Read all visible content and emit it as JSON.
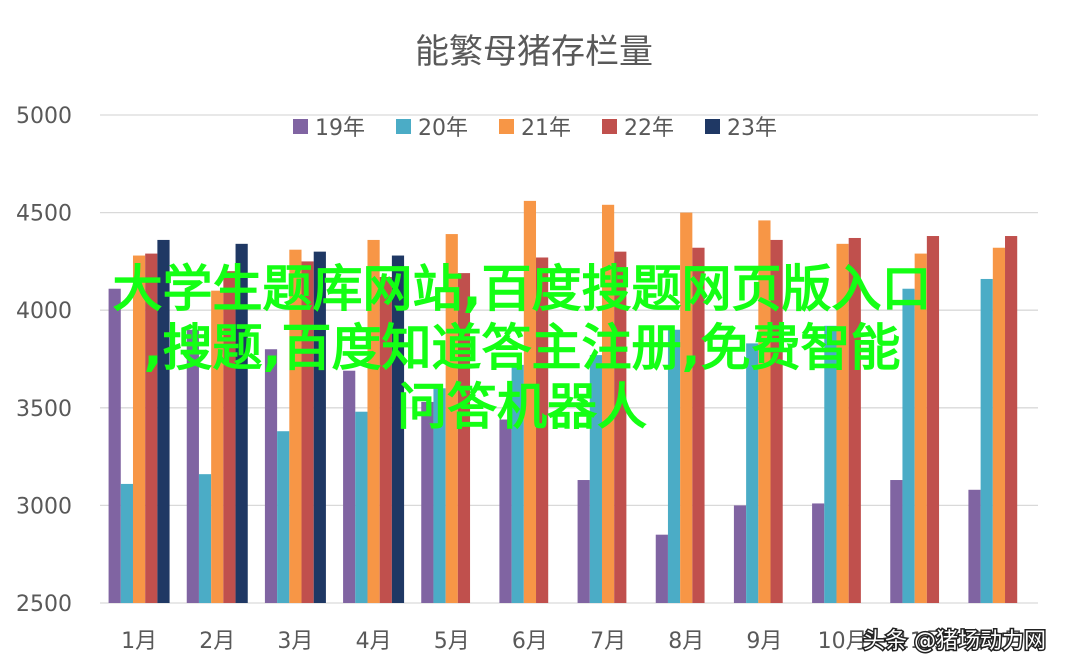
{
  "chart_data": {
    "type": "bar",
    "title": "能繁母猪存栏量",
    "categories": [
      "1月",
      "2月",
      "3月",
      "4月",
      "5月",
      "6月",
      "7月",
      "8月",
      "9月",
      "10月",
      "11月",
      "12月"
    ],
    "ylim": [
      2500,
      5000
    ],
    "yticks": [
      2500,
      3000,
      3500,
      4000,
      4500,
      5000
    ],
    "grid": true,
    "legend_position": "top",
    "series": [
      {
        "name": "19年",
        "color": "#8064a2",
        "values": [
          4110,
          3900,
          3800,
          3690,
          3530,
          3440,
          3130,
          2850,
          3000,
          3010,
          3130,
          3080
        ]
      },
      {
        "name": "20年",
        "color": "#4bacc6",
        "values": [
          3110,
          3160,
          3380,
          3480,
          3600,
          3720,
          3770,
          3900,
          3830,
          3920,
          4110,
          4160
        ]
      },
      {
        "name": "21年",
        "color": "#f79646",
        "values": [
          4280,
          4100,
          4310,
          4360,
          4390,
          4560,
          4540,
          4500,
          4460,
          4340,
          4290,
          4320
        ]
      },
      {
        "name": "22年",
        "color": "#c0504d",
        "values": [
          4290,
          4200,
          4250,
          4170,
          4190,
          4270,
          4300,
          4320,
          4360,
          4370,
          4380,
          4380
        ]
      },
      {
        "name": "23年",
        "color": "#1f3864",
        "values": [
          4360,
          4340,
          4300,
          4280,
          null,
          null,
          null,
          null,
          null,
          null,
          null,
          null
        ]
      }
    ]
  },
  "overlay": {
    "lines": [
      "大学生题库网站,百度搜题网页版入口",
      ",搜题,百度知道答主注册,免费智能",
      "问答机器人"
    ],
    "color": "#14ff14"
  },
  "credit": "头条 @猪场动力网"
}
